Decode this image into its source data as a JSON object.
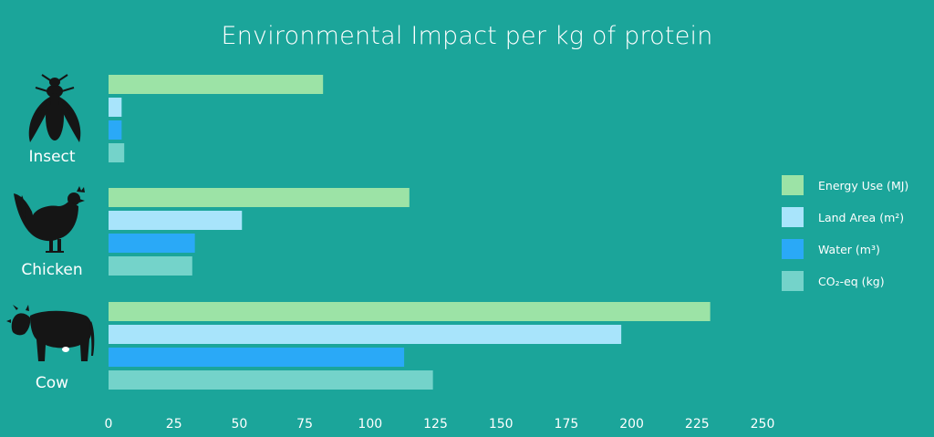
{
  "chart_data": {
    "type": "bar",
    "orientation": "horizontal",
    "title": "Environmental Impact per kg of protein",
    "categories": [
      "Insect",
      "Chicken",
      "Cow"
    ],
    "series": [
      {
        "name": "Energy Use (MJ)",
        "color": "#9ce3a6",
        "values": [
          82,
          115,
          230
        ]
      },
      {
        "name": "Land Area (m²)",
        "color": "#a8e4fb",
        "values": [
          5,
          51,
          196
        ]
      },
      {
        "name": "Water (m³)",
        "color": "#2aa9f7",
        "values": [
          5,
          33,
          113
        ]
      },
      {
        "name": "CO₂-eq (kg)",
        "color": "#74d3ca",
        "values": [
          6,
          32,
          124
        ]
      }
    ],
    "xlim": [
      0,
      250
    ],
    "x_ticks": [
      "0",
      "25",
      "50",
      "75",
      "100",
      "125",
      "150",
      "175",
      "200",
      "225",
      "250"
    ],
    "xlabel": "",
    "ylabel": "",
    "grid": false,
    "legend_position": "right",
    "category_icons": [
      "fly-icon",
      "chicken-icon",
      "cow-icon"
    ]
  }
}
